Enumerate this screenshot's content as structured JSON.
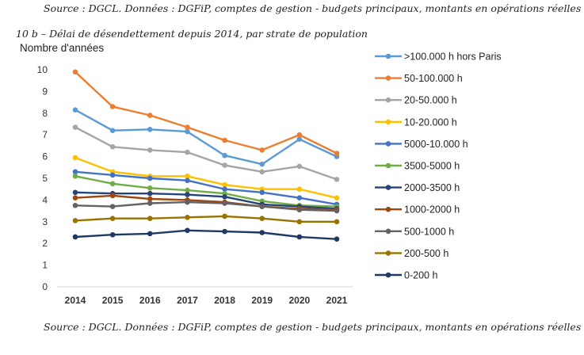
{
  "source_top": "Source : DGCL. Données : DGFiP, comptes de gestion - budgets principaux, montants en opérations réelles",
  "source_bottom": "Source : DGCL. Données : DGFiP, comptes de gestion - budgets principaux, montants en opérations réelles",
  "chart_data": {
    "type": "line",
    "title": "10 b – Délai de désendettement depuis 2014, par strate de population",
    "ylabel": "Nombre d'années",
    "xlabel": "",
    "x": [
      "2014",
      "2015",
      "2016",
      "2017",
      "2018",
      "2019",
      "2020",
      "2021"
    ],
    "ylim": [
      0,
      10
    ],
    "yticks": [
      0,
      1,
      2,
      3,
      4,
      5,
      6,
      7,
      8,
      9,
      10
    ],
    "grid": false,
    "legend_position": "right",
    "series": [
      {
        "name": ">100.000 h hors Paris",
        "color": "#5b9bd5",
        "values": [
          8.15,
          7.2,
          7.25,
          7.15,
          6.05,
          5.65,
          6.8,
          6.0
        ]
      },
      {
        "name": "50-100.000 h",
        "color": "#ed7d31",
        "values": [
          9.9,
          8.3,
          7.9,
          7.35,
          6.75,
          6.3,
          7.0,
          6.15
        ]
      },
      {
        "name": "20-50.000 h",
        "color": "#a5a5a5",
        "values": [
          7.35,
          6.45,
          6.3,
          6.2,
          5.6,
          5.3,
          5.55,
          4.95
        ]
      },
      {
        "name": "10-20.000 h",
        "color": "#ffc000",
        "values": [
          5.95,
          5.3,
          5.1,
          5.1,
          4.7,
          4.5,
          4.5,
          4.1
        ]
      },
      {
        "name": "5000-10.000 h",
        "color": "#4472c4",
        "values": [
          5.3,
          5.15,
          5.0,
          4.9,
          4.5,
          4.35,
          4.1,
          3.8
        ]
      },
      {
        "name": "3500-5000 h",
        "color": "#70ad47",
        "values": [
          5.1,
          4.75,
          4.55,
          4.45,
          4.3,
          3.95,
          3.75,
          3.7
        ]
      },
      {
        "name": "2000-3500 h",
        "color": "#264478",
        "values": [
          4.35,
          4.3,
          4.3,
          4.25,
          4.15,
          3.8,
          3.7,
          3.6
        ]
      },
      {
        "name": "1000-2000 h",
        "color": "#9e480e",
        "values": [
          4.1,
          4.2,
          4.05,
          4.0,
          3.9,
          3.7,
          3.6,
          3.55
        ]
      },
      {
        "name": "500-1000 h",
        "color": "#636363",
        "values": [
          3.75,
          3.7,
          3.85,
          3.9,
          3.85,
          3.7,
          3.55,
          3.5
        ]
      },
      {
        "name": "200-500 h",
        "color": "#997300",
        "values": [
          3.05,
          3.15,
          3.15,
          3.2,
          3.25,
          3.15,
          3.0,
          3.0
        ]
      },
      {
        "name": "0-200 h",
        "color": "#203864",
        "values": [
          2.3,
          2.4,
          2.45,
          2.6,
          2.55,
          2.5,
          2.3,
          2.2
        ]
      }
    ]
  }
}
